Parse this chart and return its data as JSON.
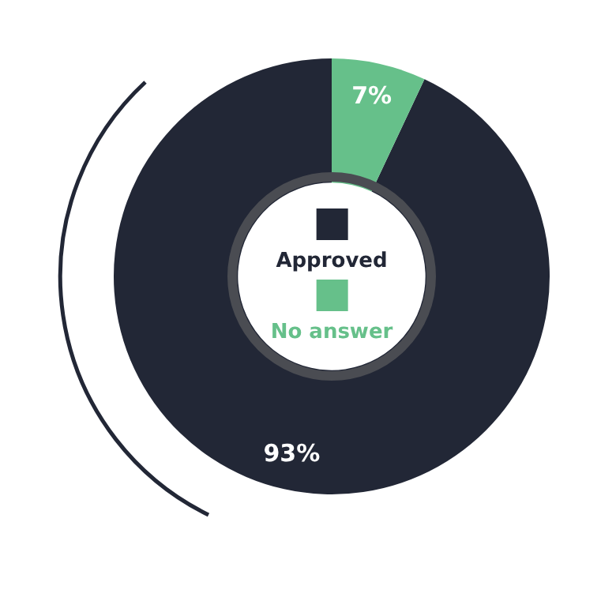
{
  "chart_data": {
    "type": "donut",
    "categories": [
      "Approved",
      "No answer"
    ],
    "values": [
      93,
      7
    ],
    "colors": [
      "#222736",
      "#66c08a"
    ],
    "value_labels": [
      "93%",
      "7%"
    ],
    "legend": "center"
  }
}
